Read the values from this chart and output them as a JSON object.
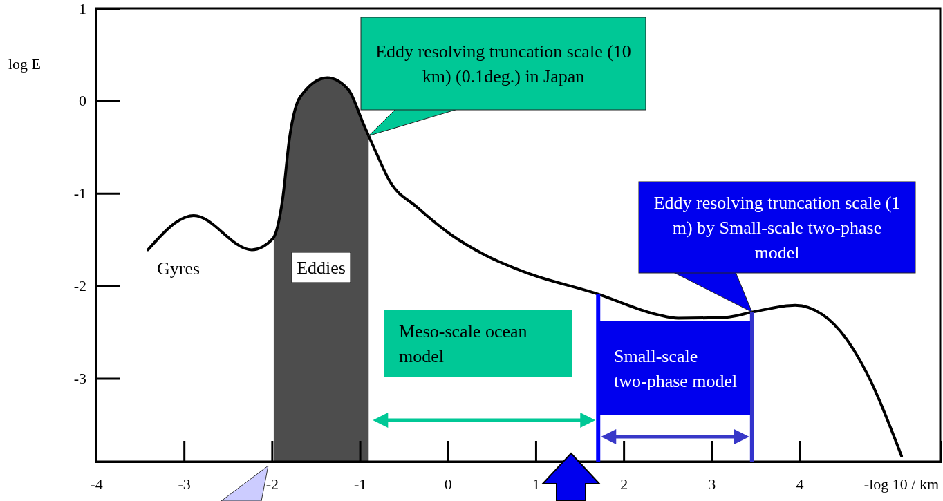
{
  "chart_data": {
    "type": "line",
    "ylabel": "log E",
    "xlabel": "-log 10 / km",
    "xlim": [
      -4,
      5.6
    ],
    "ylim": [
      -3.9,
      1
    ],
    "xticks": [
      -4,
      -3,
      -2,
      -1,
      0,
      1,
      2,
      3,
      4
    ],
    "yticks": [
      1,
      0,
      -1,
      -2,
      -3
    ],
    "series": [
      {
        "color": "#000000",
        "x": [
          -3.41,
          -2.89,
          -2.23,
          -1.99,
          -1.88,
          -1.8,
          -1.68,
          -1.37,
          -1.13,
          -0.96,
          -0.82,
          -0.66,
          -0.35,
          0.04,
          0.43,
          0.9,
          1.68,
          2.38,
          2.62,
          3.16,
          3.48,
          3.95,
          4.26,
          4.53,
          4.8,
          5.16
        ],
        "values": [
          -1.61,
          -1.24,
          -1.61,
          -1.49,
          -1.07,
          -0.4,
          0.04,
          0.25,
          0.12,
          -0.25,
          -0.55,
          -0.87,
          -1.15,
          -1.45,
          -1.67,
          -1.86,
          -2.08,
          -2.31,
          -2.35,
          -2.34,
          -2.28,
          -2.21,
          -2.31,
          -2.57,
          -3.01,
          -3.84
        ]
      }
    ],
    "bands": [
      {
        "axis": "x",
        "from": -1.98,
        "to": -0.9,
        "label": "Eddies",
        "color": "#4d4d4d"
      }
    ],
    "ref_lines": [
      {
        "axis": "x",
        "value": 1.71,
        "color": "#0000ff"
      },
      {
        "axis": "x",
        "value": 3.46,
        "color": "#3333cc"
      }
    ],
    "annotations": [
      "Eddy resolving truncation scale (10 km) (0.1deg.) in Japan",
      "Eddy resolving truncation scale (1 m) by Small-scale two-phase model",
      "Meso-scale ocean model",
      "Small-scale two-phase model",
      "Gyres"
    ],
    "grid": false
  }
}
